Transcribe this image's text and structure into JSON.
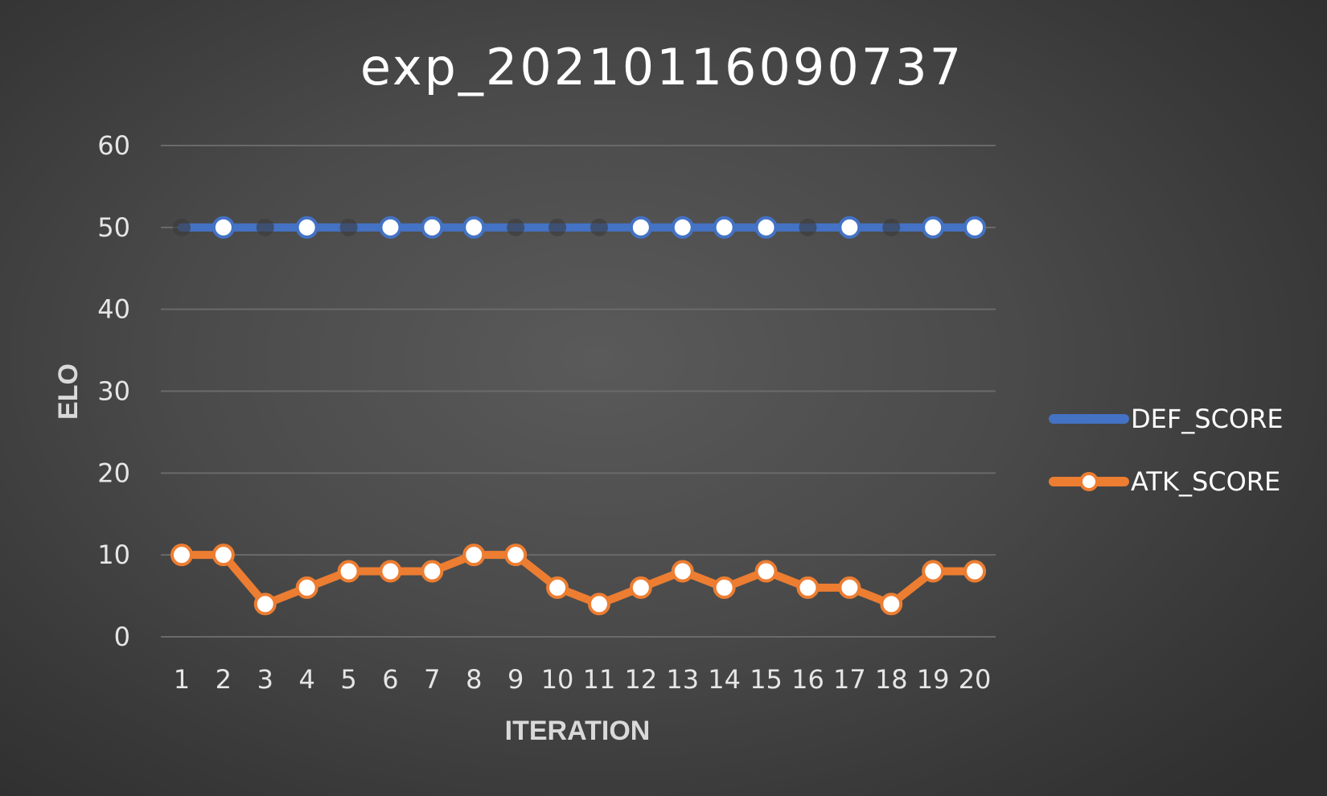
{
  "chart_data": {
    "type": "line",
    "title": "exp_20210116090737",
    "xlabel": "ITERATION",
    "ylabel": "ELO",
    "categories": [
      "1",
      "2",
      "3",
      "4",
      "5",
      "6",
      "7",
      "8",
      "9",
      "10",
      "11",
      "12",
      "13",
      "14",
      "15",
      "16",
      "17",
      "18",
      "19",
      "20"
    ],
    "ylim": [
      0,
      60
    ],
    "yticks": [
      "0",
      "10",
      "20",
      "30",
      "40",
      "50",
      "60"
    ],
    "grid": true,
    "legend_position": "right",
    "series": [
      {
        "name": "DEF_SCORE",
        "color": "#4472c4",
        "values": [
          50,
          50,
          50,
          50,
          50,
          50,
          50,
          50,
          50,
          50,
          50,
          50,
          50,
          50,
          50,
          50,
          50,
          50,
          50,
          50
        ]
      },
      {
        "name": "ATK_SCORE",
        "color": "#ed7d31",
        "values": [
          10,
          10,
          4,
          6,
          8,
          8,
          8,
          10,
          10,
          6,
          4,
          6,
          8,
          6,
          8,
          6,
          6,
          4,
          8,
          8
        ]
      }
    ]
  }
}
